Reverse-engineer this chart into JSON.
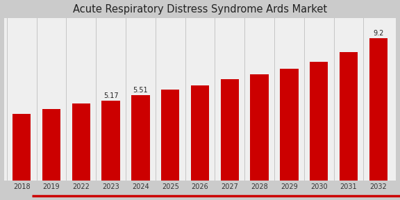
{
  "title": "Acute Respiratory Distress Syndrome Ards Market",
  "bar_color": "#cc0000",
  "background_color_outer": "#d0d0d0",
  "background_color_inner": "#f5f5f5",
  "categories": [
    "2018",
    "2019",
    "2022",
    "2023",
    "2024",
    "2025",
    "2026",
    "2027",
    "2028",
    "2029",
    "2030",
    "2031",
    "2032"
  ],
  "values": [
    4.3,
    4.62,
    4.95,
    5.17,
    5.51,
    5.85,
    6.15,
    6.52,
    6.85,
    7.22,
    7.65,
    8.3,
    9.2
  ],
  "labeled_bars": {
    "2023": "5.17",
    "2024": "5.51",
    "2032": "9.2"
  },
  "title_fontsize": 10.5,
  "ylabel_fontsize": 7.5,
  "tick_fontsize": 7,
  "annotation_fontsize": 7,
  "bottom_border_color": "#cc0000",
  "grid_color": "#c8c8c8",
  "ylim": [
    0,
    10.5
  ]
}
